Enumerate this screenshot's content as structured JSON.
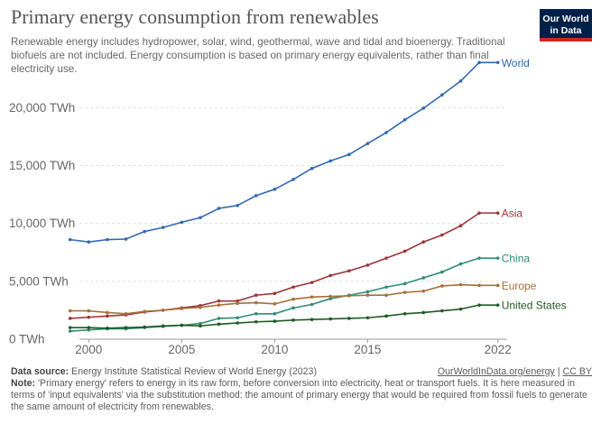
{
  "header": {
    "title": "Primary energy consumption from renewables",
    "subtitle": "Renewable energy includes hydropower, solar, wind, geothermal, wave and tidal and bioenergy. Traditional biofuels are not included. Energy consumption is based on primary energy equivalents, rather than final electricity use.",
    "logo_line1": "Our World",
    "logo_line2": "in Data",
    "logo_bg": "#002147",
    "logo_accent": "#ce261e"
  },
  "footer": {
    "source_label": "Data source:",
    "source_text": "Energy Institute Statistical Review of World Energy (2023)",
    "link_text": "OurWorldInData.org/energy",
    "separator": "|",
    "license_text": "CC BY",
    "note_label": "Note:",
    "note_text": "'Primary energy' refers to energy in its raw form, before conversion into electricity, heat or transport fuels. It is here measured in terms of 'input equivalents' via the substitution method: the amount of primary energy that would be required from fossil fuels to generate the same amount of electricity from renewables."
  },
  "chart_data": {
    "type": "line",
    "ylim": [
      0,
      24000
    ],
    "xlim": [
      1999.5,
      2022.5
    ],
    "y_ticks": [
      0,
      5000,
      10000,
      15000,
      20000
    ],
    "y_tick_labels": [
      "0 TWh",
      "5,000 TWh",
      "10,000 TWh",
      "15,000 TWh",
      "20,000 TWh"
    ],
    "x_ticks": [
      2000,
      2005,
      2010,
      2015,
      2022
    ],
    "x_tick_labels": [
      "2000",
      "2005",
      "2010",
      "2015",
      "2022"
    ],
    "grid": "horizontal dashed",
    "legend": "line-end labels",
    "x": [
      1999,
      2000,
      2001,
      2002,
      2003,
      2004,
      2005,
      2006,
      2007,
      2008,
      2009,
      2010,
      2011,
      2012,
      2013,
      2014,
      2015,
      2016,
      2017,
      2018,
      2019,
      2020,
      2021,
      2022
    ],
    "series": [
      {
        "name": "World",
        "color": "#3168b2",
        "values": [
          8600,
          8400,
          8600,
          8650,
          9300,
          9650,
          10100,
          10500,
          11300,
          11550,
          12400,
          12950,
          13800,
          14750,
          15400,
          15950,
          16900,
          17850,
          18950,
          19950,
          21100,
          22300,
          23900,
          23900
        ]
      },
      {
        "name": "Asia",
        "color": "#9b3438",
        "values": [
          1800,
          1900,
          2000,
          2100,
          2350,
          2500,
          2700,
          2900,
          3300,
          3300,
          3800,
          3950,
          4500,
          4900,
          5500,
          5900,
          6400,
          7000,
          7600,
          8400,
          9000,
          9800,
          10900,
          10900
        ]
      },
      {
        "name": "China",
        "color": "#2e8c73",
        "values": [
          700,
          800,
          900,
          900,
          1000,
          1100,
          1200,
          1350,
          1800,
          1850,
          2200,
          2200,
          2700,
          3000,
          3500,
          3800,
          4100,
          4500,
          4800,
          5300,
          5800,
          6500,
          7000,
          7000
        ]
      },
      {
        "name": "Europe",
        "color": "#a5703a",
        "values": [
          2450,
          2450,
          2300,
          2200,
          2400,
          2500,
          2650,
          2750,
          2950,
          3100,
          3150,
          3050,
          3450,
          3650,
          3700,
          3750,
          3800,
          3800,
          4050,
          4150,
          4600,
          4700,
          4650,
          4650
        ]
      },
      {
        "name": "United States",
        "color": "#1d5a23",
        "values": [
          1000,
          1000,
          950,
          1000,
          1050,
          1150,
          1200,
          1150,
          1300,
          1400,
          1500,
          1550,
          1650,
          1700,
          1750,
          1800,
          1850,
          2000,
          2200,
          2300,
          2450,
          2600,
          2950,
          2950
        ]
      }
    ]
  }
}
